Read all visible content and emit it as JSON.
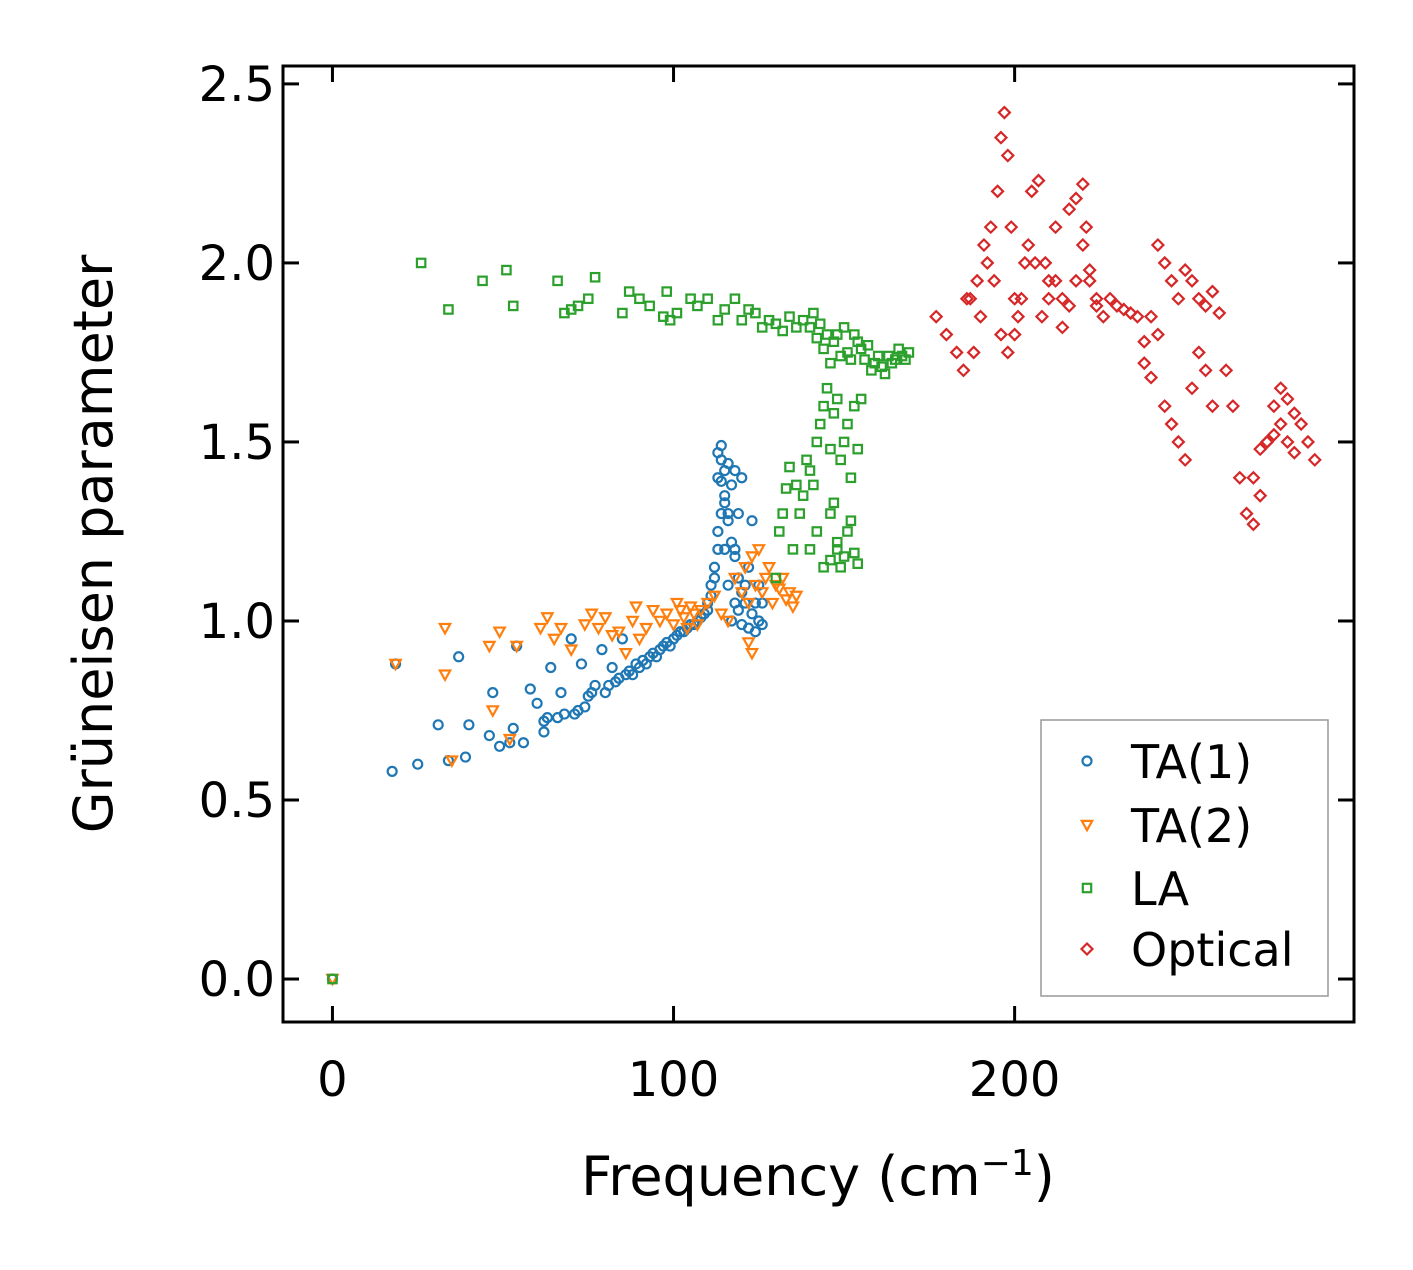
{
  "chart_data": {
    "type": "scatter",
    "title": "",
    "xlabel": "Frequency (cm",
    "xlabel_sup": "−1",
    "xlabel_close": ")",
    "ylabel": "Grüneisen parameter",
    "xlim": [
      -14.5,
      299.5
    ],
    "ylim": [
      -0.12,
      2.55
    ],
    "xticks": [
      0,
      100,
      200
    ],
    "xtick_labels": [
      "0",
      "100",
      "200"
    ],
    "yticks": [
      0.0,
      0.5,
      1.0,
      1.5,
      2.0,
      2.5
    ],
    "ytick_labels": [
      "0.0",
      "0.5",
      "1.0",
      "1.5",
      "2.0",
      "2.5"
    ],
    "grid": false,
    "legend_position": "bottom-right",
    "series": [
      {
        "name": "TA(1)",
        "label": "TA(1)",
        "marker": "circle",
        "color": "#1f77b4",
        "x": [
          0,
          17.5,
          18.5,
          25,
          31,
          34,
          37,
          39,
          40,
          46,
          47,
          49,
          52,
          53,
          54,
          56,
          58,
          60,
          62,
          62,
          63,
          64,
          66,
          67,
          68,
          70,
          71,
          72,
          73,
          74,
          75,
          76,
          77,
          79,
          80,
          81,
          82,
          83,
          84,
          85,
          86,
          87,
          88,
          89,
          90,
          91,
          92,
          93,
          94,
          95,
          96,
          97,
          98,
          99,
          100,
          101,
          102,
          103,
          104,
          105,
          106,
          107,
          108,
          109,
          110,
          110,
          111,
          111,
          112,
          112,
          113,
          113,
          113,
          114,
          114,
          114,
          115,
          115,
          115,
          116,
          116,
          116,
          117,
          117,
          118,
          118,
          118,
          119,
          119,
          120,
          120,
          121,
          121,
          122,
          122,
          123,
          123,
          124,
          124,
          125,
          125,
          126,
          126,
          113,
          114,
          115,
          116,
          117,
          118,
          119,
          120
        ],
        "y": [
          0.0,
          0.58,
          0.88,
          0.6,
          0.71,
          0.61,
          0.9,
          0.62,
          0.71,
          0.68,
          0.8,
          0.65,
          0.66,
          0.7,
          0.93,
          0.66,
          0.81,
          0.77,
          0.69,
          0.72,
          0.73,
          0.87,
          0.73,
          0.8,
          0.74,
          0.95,
          0.74,
          0.75,
          0.88,
          0.76,
          0.79,
          0.8,
          0.82,
          0.92,
          0.8,
          0.82,
          0.87,
          0.83,
          0.84,
          0.95,
          0.85,
          0.86,
          0.85,
          0.88,
          0.87,
          0.89,
          0.88,
          0.9,
          0.91,
          0.9,
          0.92,
          0.93,
          0.94,
          0.93,
          0.95,
          0.96,
          0.97,
          0.97,
          0.98,
          0.99,
          0.99,
          1.0,
          1.01,
          1.02,
          1.03,
          1.05,
          1.07,
          1.1,
          1.12,
          1.15,
          1.2,
          1.25,
          1.4,
          1.3,
          1.45,
          1.49,
          1.35,
          1.42,
          1.2,
          1.1,
          1.3,
          1.44,
          1.0,
          1.38,
          1.05,
          1.42,
          1.2,
          1.03,
          1.3,
          0.99,
          1.4,
          1.05,
          1.1,
          0.98,
          1.15,
          1.02,
          1.28,
          0.97,
          1.05,
          1.0,
          1.1,
          0.99,
          1.05,
          1.47,
          1.39,
          1.33,
          1.28,
          1.22,
          1.18,
          1.12,
          1.08
        ]
      },
      {
        "name": "TA(2)",
        "label": "TA(2)",
        "marker": "triangle-down",
        "color": "#ff7f0e",
        "x": [
          0,
          18.5,
          33,
          33,
          35,
          46,
          47,
          49,
          52,
          54,
          61,
          63,
          65,
          67,
          70,
          74,
          76,
          78,
          80,
          82,
          84,
          86,
          88,
          89,
          90,
          92,
          94,
          96,
          98,
          100,
          101,
          102,
          103,
          104,
          105,
          106,
          107,
          108,
          110,
          112,
          114,
          116,
          118,
          120,
          121,
          122,
          123,
          124,
          125,
          126,
          127,
          128,
          129,
          130,
          131,
          132,
          133,
          134,
          135,
          136,
          122,
          123
        ],
        "y": [
          0.0,
          0.88,
          0.98,
          0.85,
          0.61,
          0.93,
          0.75,
          0.97,
          0.67,
          0.93,
          0.98,
          1.01,
          0.95,
          0.98,
          0.92,
          0.99,
          1.02,
          0.98,
          1.01,
          0.96,
          0.97,
          0.91,
          1.0,
          1.04,
          0.95,
          0.98,
          1.03,
          1.0,
          1.02,
          0.99,
          1.05,
          1.03,
          1.01,
          0.98,
          1.04,
          1.02,
          0.99,
          1.03,
          1.05,
          1.07,
          1.02,
          1.0,
          1.12,
          1.08,
          1.15,
          1.05,
          1.18,
          1.1,
          1.2,
          1.08,
          1.12,
          1.15,
          1.05,
          1.1,
          1.09,
          1.12,
          1.06,
          1.08,
          1.04,
          1.07,
          0.94,
          0.91
        ]
      },
      {
        "name": "LA",
        "label": "LA",
        "marker": "square",
        "color": "#2ca02c",
        "x": [
          0,
          26,
          34,
          44,
          51,
          53,
          66,
          68,
          70,
          72,
          75,
          77,
          85,
          87,
          90,
          93,
          97,
          98,
          99,
          101,
          105,
          107,
          110,
          113,
          115,
          118,
          120,
          122,
          124,
          126,
          128,
          130,
          132,
          134,
          136,
          138,
          140,
          141,
          142,
          143,
          144,
          145,
          146,
          147,
          148,
          149,
          150,
          151,
          152,
          153,
          154,
          155,
          156,
          157,
          158,
          159,
          160,
          161,
          162,
          163,
          164,
          165,
          166,
          167,
          168,
          169,
          140,
          141,
          142,
          143,
          144,
          145,
          146,
          147,
          148,
          149,
          150,
          151,
          152,
          153,
          154,
          155,
          140,
          142,
          144,
          146,
          148,
          150,
          152,
          154,
          138,
          139,
          136,
          137,
          134,
          135,
          133,
          131,
          130,
          132,
          146,
          148,
          147,
          149,
          151,
          153
        ],
        "y": [
          0.0,
          2.0,
          1.87,
          1.95,
          1.98,
          1.88,
          1.95,
          1.86,
          1.87,
          1.88,
          1.9,
          1.96,
          1.86,
          1.92,
          1.9,
          1.88,
          1.85,
          1.92,
          1.84,
          1.86,
          1.9,
          1.88,
          1.9,
          1.84,
          1.87,
          1.9,
          1.84,
          1.87,
          1.86,
          1.82,
          1.84,
          1.83,
          1.81,
          1.85,
          1.82,
          1.84,
          1.82,
          1.86,
          1.79,
          1.83,
          1.76,
          1.8,
          1.72,
          1.78,
          1.8,
          1.74,
          1.82,
          1.75,
          1.73,
          1.8,
          1.78,
          1.76,
          1.73,
          1.77,
          1.7,
          1.72,
          1.74,
          1.71,
          1.69,
          1.74,
          1.72,
          1.73,
          1.76,
          1.74,
          1.73,
          1.75,
          1.42,
          1.38,
          1.5,
          1.55,
          1.6,
          1.65,
          1.48,
          1.58,
          1.62,
          1.45,
          1.5,
          1.55,
          1.4,
          1.6,
          1.48,
          1.62,
          1.2,
          1.25,
          1.15,
          1.3,
          1.22,
          1.18,
          1.28,
          1.16,
          1.35,
          1.45,
          1.38,
          1.3,
          1.43,
          1.2,
          1.37,
          1.25,
          1.12,
          1.3,
          1.17,
          1.2,
          1.33,
          1.15,
          1.25,
          1.19
        ]
      },
      {
        "name": "Optical",
        "label": "Optical",
        "marker": "diamond",
        "color": "#d62728",
        "x": [
          177,
          180,
          183,
          185,
          187,
          189,
          191,
          193,
          195,
          196,
          197,
          198,
          199,
          200,
          201,
          203,
          205,
          207,
          209,
          210,
          212,
          214,
          216,
          218,
          220,
          221,
          222,
          224,
          226,
          228,
          230,
          232,
          234,
          236,
          238,
          240,
          242,
          244,
          246,
          248,
          250,
          252,
          254,
          256,
          258,
          260,
          262,
          264,
          266,
          268,
          270,
          272,
          274,
          276,
          278,
          280,
          282,
          284,
          286,
          288,
          186,
          188,
          190,
          192,
          194,
          196,
          198,
          200,
          202,
          204,
          206,
          208,
          210,
          212,
          214,
          216,
          218,
          220,
          222,
          224,
          238,
          240,
          242,
          244,
          246,
          248,
          250,
          252,
          254,
          256,
          258,
          270,
          272,
          274,
          276,
          278,
          280,
          282
        ],
        "y": [
          1.85,
          1.8,
          1.75,
          1.7,
          1.9,
          1.95,
          2.05,
          2.1,
          2.2,
          2.35,
          2.42,
          2.3,
          2.1,
          1.9,
          1.85,
          2.0,
          2.2,
          2.23,
          2.0,
          1.95,
          2.1,
          1.9,
          2.15,
          2.18,
          2.22,
          2.1,
          1.95,
          1.88,
          1.85,
          1.9,
          1.88,
          1.87,
          1.86,
          1.85,
          1.78,
          1.85,
          2.05,
          2.0,
          1.95,
          1.9,
          1.98,
          1.95,
          1.9,
          1.88,
          1.92,
          1.86,
          1.7,
          1.6,
          1.4,
          1.3,
          1.27,
          1.35,
          1.5,
          1.6,
          1.65,
          1.62,
          1.58,
          1.55,
          1.5,
          1.45,
          1.9,
          1.75,
          1.85,
          2.0,
          1.95,
          1.8,
          1.75,
          1.8,
          1.9,
          2.05,
          2.0,
          1.85,
          1.9,
          1.95,
          1.82,
          1.88,
          1.95,
          2.05,
          1.98,
          1.9,
          1.72,
          1.68,
          1.8,
          1.6,
          1.55,
          1.5,
          1.45,
          1.65,
          1.75,
          1.7,
          1.6,
          1.4,
          1.48,
          1.5,
          1.52,
          1.55,
          1.5,
          1.47
        ]
      }
    ]
  }
}
